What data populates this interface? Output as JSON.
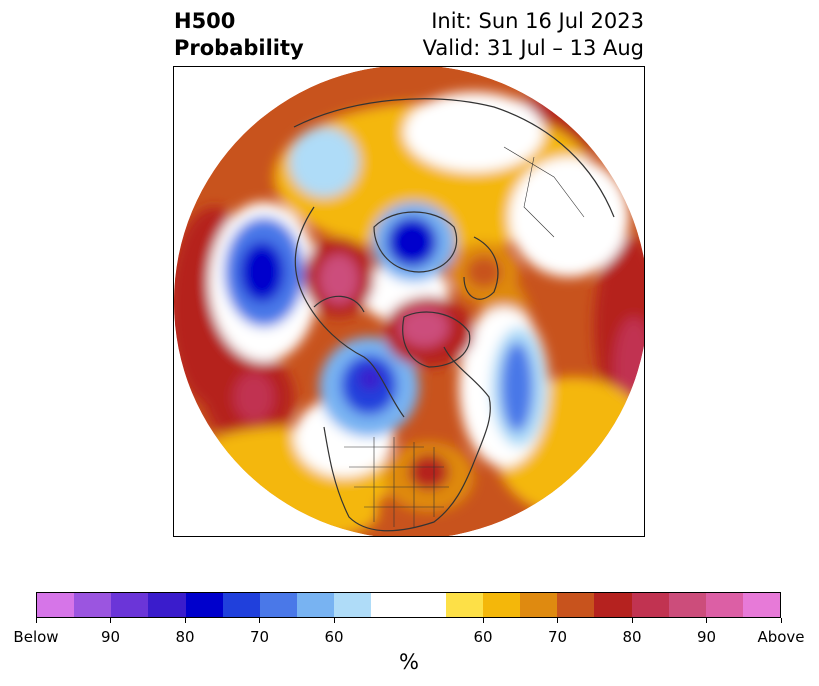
{
  "header": {
    "variable": "H500",
    "product": "Probability",
    "init": "Init: Sun 16 Jul 2023",
    "valid": "Valid: 31 Jul – 13 Aug"
  },
  "map": {
    "projection": "north-polar-stereographic",
    "background": "#ffffff",
    "coastline_color": "#333333"
  },
  "colorbar": {
    "colors": [
      "#d675e8",
      "#9b55e0",
      "#6b35d8",
      "#3a1ccc",
      "#0000cc",
      "#2040dc",
      "#4a78e8",
      "#78b3f2",
      "#afdcf8",
      "#ffffff",
      "#ffffff",
      "#fde047",
      "#f4b70a",
      "#df8a10",
      "#c8531d",
      "#b5221f",
      "#c13351",
      "#cc4d7b",
      "#dc5fa5",
      "#e77ad8"
    ],
    "tick_labels": [
      "Below",
      "90",
      "80",
      "70",
      "60",
      "60",
      "70",
      "80",
      "90",
      "Above"
    ],
    "unit": "%"
  }
}
